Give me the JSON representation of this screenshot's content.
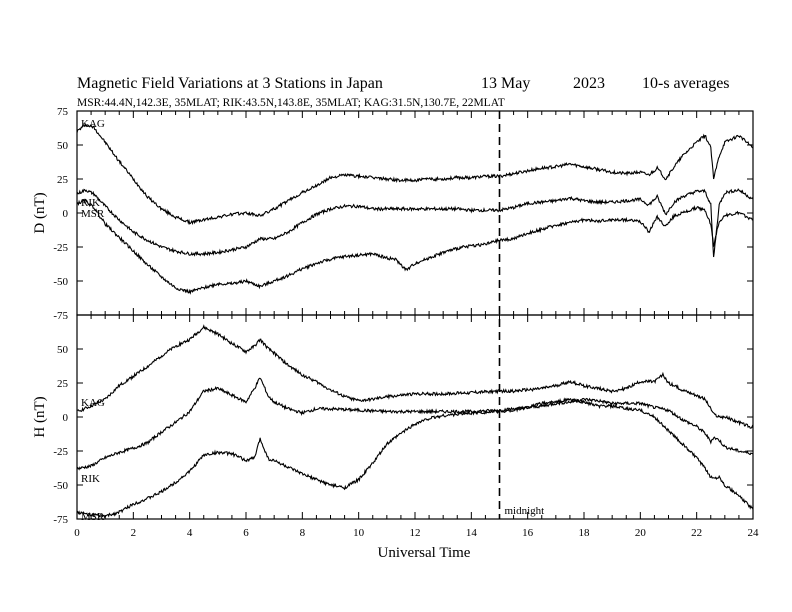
{
  "title": "Magnetic Field Variations at 3 Stations in Japan",
  "date": "13 May",
  "year": "2023",
  "averaging": "10-s averages",
  "subtitle": "MSR:44.4N,142.3E, 35MLAT;  RIK:43.5N,143.8E, 35MLAT;  KAG:31.5N,130.7E, 22MLAT",
  "xlabel": "Universal Time",
  "midnight_label": "midnight",
  "colors": {
    "trace": "#000000",
    "background": "#ffffff"
  },
  "chart_data": [
    {
      "type": "line",
      "panel": "D",
      "ylabel": "D (nT)",
      "xlim": [
        0,
        24
      ],
      "ylim": [
        -75,
        75
      ],
      "x_ticks": [
        0,
        2,
        4,
        6,
        8,
        10,
        12,
        14,
        16,
        18,
        20,
        22,
        24
      ],
      "y_ticks": [
        -75,
        -50,
        -25,
        0,
        25,
        50,
        75
      ],
      "y_tick_labels": [
        "-75",
        "-50",
        "-25",
        "0",
        "25",
        "50",
        "75"
      ],
      "midnight_ut": 15,
      "series": [
        {
          "name": "KAG",
          "x": [
            0,
            0.3,
            0.6,
            1,
            1.5,
            2,
            2.5,
            3,
            3.5,
            4,
            4.5,
            5,
            5.5,
            6,
            6.5,
            7,
            7.5,
            8,
            8.5,
            9,
            9.5,
            10,
            10.5,
            11,
            11.5,
            12,
            12.5,
            13,
            13.5,
            14,
            14.5,
            15,
            15.5,
            16,
            16.5,
            17,
            17.5,
            18,
            18.5,
            19,
            19.5,
            20,
            20.3,
            20.6,
            20.9,
            21.2,
            21.5,
            22,
            22.3,
            22.5,
            22.6,
            22.8,
            23,
            23.5,
            24
          ],
          "y": [
            60,
            65,
            63,
            52,
            38,
            25,
            12,
            3,
            -3,
            -7,
            -5,
            -3,
            -1,
            0,
            -2,
            3,
            9,
            15,
            20,
            26,
            28,
            27,
            26,
            25,
            24,
            24,
            25,
            25,
            26,
            26,
            27,
            27,
            29,
            31,
            33,
            34,
            36,
            34,
            32,
            30,
            29,
            30,
            28,
            33,
            25,
            34,
            42,
            52,
            57,
            48,
            25,
            42,
            52,
            57,
            48
          ]
        },
        {
          "name": "RIK",
          "x": [
            0,
            0.3,
            0.6,
            1,
            1.5,
            2,
            2.5,
            3,
            3.5,
            4,
            4.5,
            5,
            5.5,
            6,
            6.5,
            7,
            7.5,
            8,
            8.5,
            9,
            9.5,
            10,
            10.5,
            11,
            11.5,
            12,
            12.5,
            13,
            13.5,
            14,
            14.5,
            15,
            15.5,
            16,
            16.5,
            17,
            17.5,
            18,
            18.5,
            19,
            19.5,
            20,
            20.3,
            20.6,
            20.9,
            21.2,
            21.5,
            22,
            22.3,
            22.5,
            22.6,
            22.8,
            23,
            23.5,
            24
          ],
          "y": [
            14,
            17,
            14,
            5,
            -5,
            -14,
            -20,
            -25,
            -28,
            -30,
            -30,
            -29,
            -27,
            -25,
            -19,
            -19,
            -14,
            -7,
            -1,
            3,
            5,
            5,
            3,
            3,
            3,
            3,
            3,
            3,
            3,
            2,
            2,
            2,
            4,
            7,
            8,
            9,
            11,
            9,
            8,
            8,
            9,
            10,
            6,
            12,
            -1,
            8,
            12,
            16,
            16,
            6,
            -33,
            6,
            15,
            17,
            10
          ]
        },
        {
          "name": "MSR",
          "x": [
            0,
            0.3,
            0.6,
            1,
            1.5,
            2,
            2.5,
            3,
            3.5,
            4,
            4.5,
            5,
            5.5,
            6,
            6.5,
            7,
            7.5,
            8,
            8.5,
            9,
            9.5,
            10,
            10.5,
            11,
            11.3,
            11.7,
            12,
            12.5,
            13,
            13.5,
            14,
            14.5,
            15,
            15.5,
            16,
            16.5,
            17,
            17.5,
            18,
            18.5,
            19,
            19.5,
            20,
            20.3,
            20.6,
            20.9,
            21.2,
            21.5,
            22,
            22.3,
            22.5,
            22.6,
            22.8,
            23,
            23.5,
            24
          ],
          "y": [
            7,
            9,
            4,
            -8,
            -18,
            -28,
            -38,
            -47,
            -55,
            -58,
            -55,
            -52,
            -52,
            -50,
            -54,
            -50,
            -46,
            -41,
            -37,
            -34,
            -32,
            -31,
            -30,
            -33,
            -34,
            -42,
            -37,
            -33,
            -29,
            -26,
            -24,
            -23,
            -20,
            -19,
            -15,
            -12,
            -9,
            -7,
            -5,
            -6,
            -5,
            -5,
            -6,
            -14,
            -3,
            -10,
            -2,
            0,
            4,
            2,
            -8,
            -24,
            -6,
            -2,
            0,
            -5
          ]
        }
      ]
    },
    {
      "type": "line",
      "panel": "H",
      "ylabel": "H (nT)",
      "xlim": [
        0,
        24
      ],
      "ylim": [
        -75,
        75
      ],
      "x_ticks": [
        0,
        2,
        4,
        6,
        8,
        10,
        12,
        14,
        16,
        18,
        20,
        22,
        24
      ],
      "x_tick_labels": [
        "0",
        "2",
        "4",
        "6",
        "8",
        "10",
        "12",
        "14",
        "16",
        "18",
        "20",
        "22",
        "24"
      ],
      "y_ticks": [
        -75,
        -50,
        -25,
        0,
        25,
        50
      ],
      "y_tick_labels": [
        "-75",
        "-50",
        "-25",
        "0",
        "25",
        "50"
      ],
      "midnight_ut": 15,
      "series": [
        {
          "name": "KAG",
          "x": [
            0,
            0.5,
            1,
            1.5,
            2,
            2.5,
            3,
            3.5,
            4,
            4.5,
            5,
            5.5,
            6,
            6.3,
            6.5,
            6.8,
            7,
            7.5,
            8,
            8.5,
            9,
            9.5,
            10,
            10.5,
            11,
            11.5,
            12,
            13,
            14,
            15,
            15.5,
            16,
            16.5,
            17,
            17.5,
            18,
            18.5,
            19,
            19.5,
            20,
            20.5,
            20.8,
            21,
            21.5,
            22,
            22.3,
            22.5,
            22.6,
            22.8,
            23,
            23.5,
            24
          ],
          "y": [
            4,
            8,
            13,
            23,
            30,
            37,
            45,
            52,
            57,
            66,
            61,
            54,
            48,
            52,
            57,
            50,
            47,
            38,
            31,
            26,
            20,
            15,
            12,
            13,
            15,
            16,
            17,
            17,
            18,
            19,
            19,
            20,
            21,
            23,
            26,
            23,
            21,
            19,
            21,
            26,
            26,
            31,
            25,
            20,
            16,
            13,
            6,
            2,
            0,
            0,
            -4,
            -8
          ]
        },
        {
          "name": "RIK",
          "x": [
            0,
            0.5,
            1,
            1.5,
            2,
            2.5,
            3,
            3.5,
            4,
            4.5,
            5,
            5.5,
            6,
            6.3,
            6.5,
            6.8,
            7,
            7.5,
            8,
            8.5,
            9,
            10,
            11,
            12,
            13,
            14,
            15,
            15.5,
            16,
            16.5,
            17,
            17.5,
            18,
            18.5,
            19,
            19.5,
            20,
            20.5,
            21,
            21.5,
            22,
            22.3,
            22.5,
            22.6,
            22.8,
            23,
            23.5,
            24
          ],
          "y": [
            -38,
            -36,
            -30,
            -26,
            -23,
            -19,
            -11,
            -4,
            4,
            19,
            21,
            16,
            11,
            21,
            29,
            15,
            11,
            6,
            3,
            6,
            6,
            5,
            4,
            4,
            4,
            4,
            5,
            6,
            7,
            8,
            10,
            11,
            13,
            12,
            10,
            10,
            10,
            7,
            5,
            -2,
            -7,
            -12,
            -18,
            -15,
            -17,
            -22,
            -25,
            -27
          ]
        },
        {
          "name": "MSR",
          "x": [
            0,
            0.5,
            1,
            1.5,
            2,
            2.5,
            3,
            3.5,
            4,
            4.5,
            5,
            5.5,
            6,
            6.3,
            6.5,
            6.8,
            7,
            7.5,
            8,
            8.5,
            9,
            9.5,
            10,
            10.5,
            11,
            11.5,
            12,
            12.5,
            13,
            14,
            15,
            15.5,
            16,
            16.5,
            17,
            17.5,
            18,
            18.5,
            19,
            19.5,
            20,
            20.5,
            21,
            21.5,
            22,
            22.3,
            22.5,
            22.6,
            22.8,
            23,
            23.5,
            24
          ],
          "y": [
            -70,
            -72,
            -73,
            -70,
            -64,
            -60,
            -55,
            -48,
            -40,
            -28,
            -26,
            -27,
            -32,
            -30,
            -16,
            -31,
            -32,
            -37,
            -42,
            -46,
            -50,
            -52,
            -46,
            -34,
            -20,
            -12,
            -5,
            -1,
            1,
            3,
            4,
            5,
            7,
            10,
            11,
            13,
            11,
            8,
            8,
            6,
            5,
            0,
            -10,
            -20,
            -30,
            -38,
            -44,
            -45,
            -44,
            -50,
            -58,
            -68
          ]
        }
      ]
    }
  ]
}
